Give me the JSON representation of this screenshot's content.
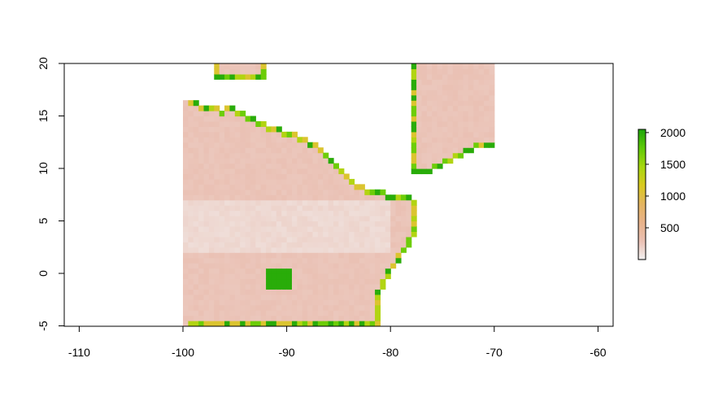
{
  "chart_data": {
    "type": "heatmap",
    "title": "",
    "xlabel": "",
    "ylabel": "",
    "xlim": [
      -110,
      -60
    ],
    "ylim": [
      -5,
      20
    ],
    "x_ticks": [
      "-110",
      "-100",
      "-90",
      "-80",
      "-70",
      "-60"
    ],
    "y_ticks": [
      "-5",
      "0",
      "5",
      "10",
      "15",
      "20"
    ],
    "legend": {
      "placement": "right",
      "ticks": [
        "500",
        "1000",
        "1500",
        "2000"
      ],
      "range": [
        0,
        2050
      ],
      "colors": [
        "#f2f2f2",
        "#eac0b3",
        "#e8b28a",
        "#e3b460",
        "#d9c91f",
        "#a7d70e",
        "#5fca07",
        "#1ea60a"
      ]
    },
    "raster": {
      "resolution": 0.5,
      "ocean_value": 250,
      "ocean_light_value": 120,
      "land_value": 2000,
      "coast_values": [
        1100,
        1400,
        1700,
        2000
      ]
    }
  }
}
